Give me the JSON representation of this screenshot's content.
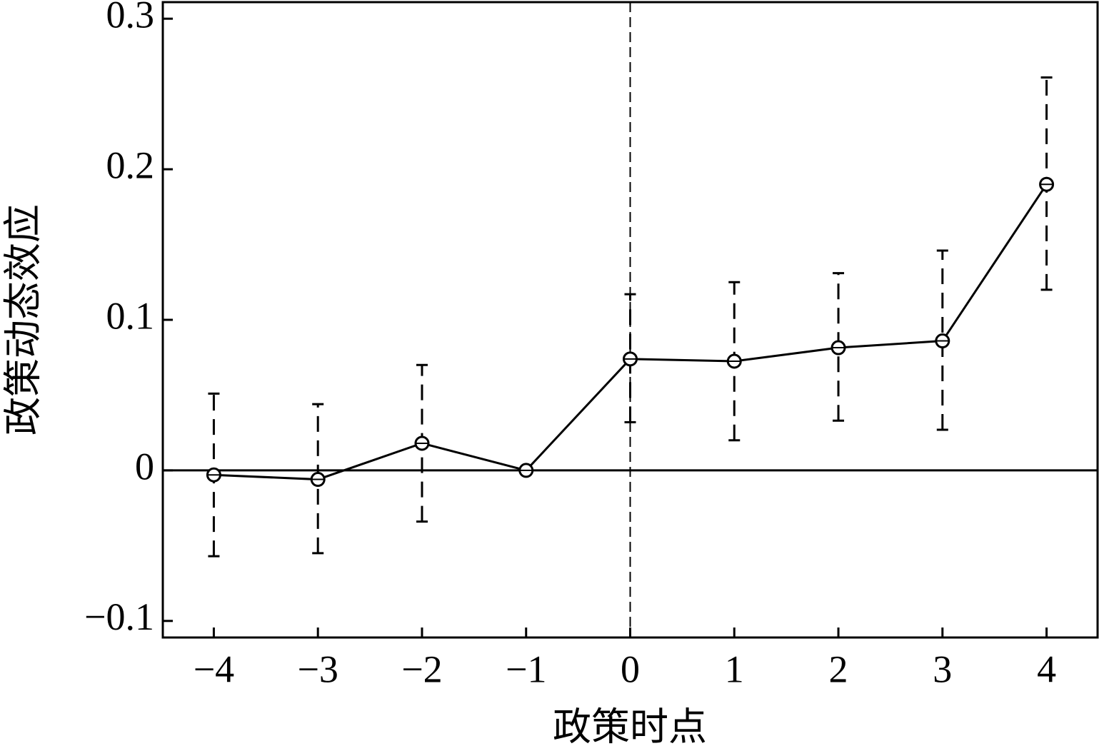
{
  "chart_data": {
    "type": "errorbar",
    "x_label": "政策时点",
    "y_label": "政策动态效应",
    "x": [
      -4,
      -3,
      -2,
      -1,
      0,
      1,
      2,
      3,
      4
    ],
    "series": [
      {
        "color": "#000000",
        "values": [
          -0.003,
          -0.006,
          0.018,
          0,
          0.074,
          0.0725,
          0.0815,
          0.086,
          0.19
        ],
        "lower": [
          -0.057,
          -0.055,
          -0.034,
          null,
          0.032,
          0.02,
          0.033,
          0.027,
          0.12
        ],
        "upper": [
          0.051,
          0.044,
          0.07,
          null,
          0.117,
          0.125,
          0.131,
          0.146,
          0.261
        ]
      }
    ],
    "xlim": [
      -4.49,
      4.49
    ],
    "ylim": [
      -0.111,
      0.311
    ],
    "xticks": [
      {
        "value": -4,
        "label": "−4"
      },
      {
        "value": -3,
        "label": "−3"
      },
      {
        "value": -2,
        "label": "−2"
      },
      {
        "value": -1,
        "label": "−1"
      },
      0,
      1,
      2,
      3,
      4
    ],
    "yticks": [
      {
        "value": -0.1,
        "label": "−0.1"
      },
      0,
      0.1,
      0.2,
      0.3
    ],
    "hline": 0,
    "vline": 0,
    "grid": false
  }
}
